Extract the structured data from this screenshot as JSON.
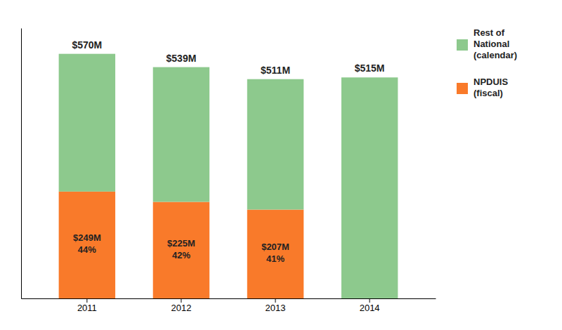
{
  "chart_data": {
    "type": "bar",
    "stacked": true,
    "categories": [
      "2011",
      "2012",
      "2013",
      "2014"
    ],
    "series": [
      {
        "name": "NPDUIS\n(fiscal)",
        "color": "#F97A2A",
        "values": [
          249,
          225,
          207,
          0
        ],
        "value_labels": [
          "$249M\n44%",
          "$225M\n42%",
          "$207M\n41%",
          null
        ]
      },
      {
        "name": "Rest of\nNational\n(calendar)",
        "color": "#8DC98D",
        "values": [
          321,
          314,
          304,
          515
        ]
      }
    ],
    "totals": [
      570,
      539,
      511,
      515
    ],
    "total_labels": [
      "$570M",
      "$539M",
      "$511M",
      "$515M"
    ],
    "ylim": [
      0,
      630
    ],
    "tick_labels": "x",
    "grid": false,
    "legend": "upper right"
  }
}
